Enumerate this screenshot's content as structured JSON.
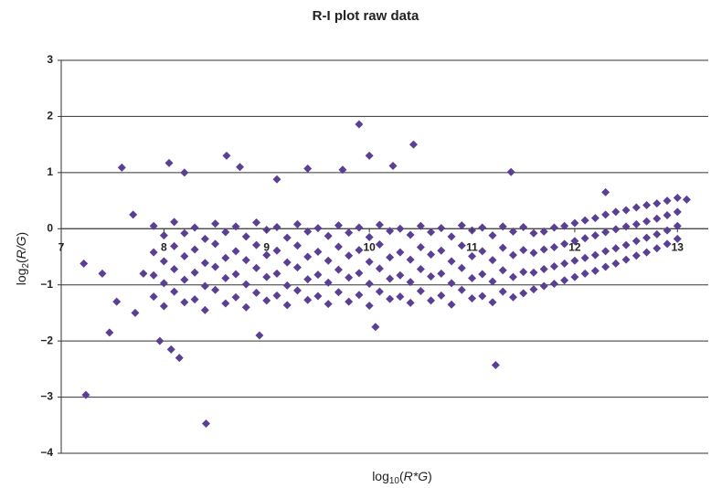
{
  "chart_data": {
    "type": "scatter",
    "title": "R-I plot raw data",
    "xlabel_parts": [
      "log",
      "10",
      "(",
      "R*G",
      ")"
    ],
    "ylabel_parts": [
      "log",
      "2",
      "(",
      "R/G",
      ")"
    ],
    "color": "#5b3f94",
    "grid": true,
    "xlim": [
      7,
      13.3
    ],
    "ylim": [
      -4,
      3
    ],
    "xticks": [
      7,
      8,
      9,
      10,
      11,
      12,
      13
    ],
    "yticks": [
      {
        "value": -4,
        "label": "−4"
      },
      {
        "value": -3,
        "label": "−3"
      },
      {
        "value": -2,
        "label": "−2"
      },
      {
        "value": -1,
        "label": "−1"
      },
      0,
      1,
      2,
      3
    ],
    "x": [
      7.9,
      7.9,
      7.9,
      7.9,
      8.0,
      8.0,
      8.0,
      8.0,
      8.1,
      8.1,
      8.1,
      8.1,
      8.2,
      8.2,
      8.2,
      8.2,
      8.3,
      8.3,
      8.3,
      8.3,
      8.4,
      8.4,
      8.4,
      8.4,
      8.5,
      8.5,
      8.5,
      8.5,
      8.6,
      8.6,
      8.6,
      8.6,
      8.7,
      8.7,
      8.7,
      8.7,
      8.8,
      8.8,
      8.8,
      8.8,
      8.9,
      8.9,
      8.9,
      8.9,
      9.0,
      9.0,
      9.0,
      9.0,
      9.1,
      9.1,
      9.1,
      9.1,
      9.2,
      9.2,
      9.2,
      9.2,
      9.3,
      9.3,
      9.3,
      9.3,
      9.4,
      9.4,
      9.4,
      9.4,
      9.5,
      9.5,
      9.5,
      9.5,
      9.6,
      9.6,
      9.6,
      9.6,
      9.7,
      9.7,
      9.7,
      9.7,
      9.8,
      9.8,
      9.8,
      9.8,
      9.9,
      9.9,
      9.9,
      9.9,
      10.0,
      10.0,
      10.0,
      10.0,
      10.1,
      10.1,
      10.1,
      10.1,
      10.2,
      10.2,
      10.2,
      10.2,
      10.3,
      10.3,
      10.3,
      10.3,
      10.4,
      10.4,
      10.4,
      10.4,
      10.5,
      10.5,
      10.5,
      10.5,
      10.6,
      10.6,
      10.6,
      10.6,
      10.7,
      10.7,
      10.7,
      10.7,
      10.8,
      10.8,
      10.8,
      10.8,
      10.9,
      10.9,
      10.9,
      10.9,
      11.0,
      11.0,
      11.0,
      11.0,
      11.1,
      11.1,
      11.1,
      11.1,
      11.2,
      11.2,
      11.2,
      11.2,
      11.3,
      11.3,
      11.3,
      11.3,
      11.4,
      11.4,
      11.4,
      11.4,
      11.5,
      11.5,
      11.5,
      11.5,
      11.6,
      11.6,
      11.6,
      11.6,
      11.7,
      11.7,
      11.7,
      11.7,
      11.8,
      11.8,
      11.8,
      11.8,
      11.9,
      11.9,
      11.9,
      11.9,
      12.0,
      12.0,
      12.0,
      12.0,
      12.1,
      12.1,
      12.1,
      12.1,
      12.2,
      12.2,
      12.2,
      12.2,
      12.3,
      12.3,
      12.3,
      12.3,
      12.4,
      12.4,
      12.4,
      12.4,
      12.5,
      12.5,
      12.5,
      12.5,
      12.6,
      12.6,
      12.6,
      12.6,
      12.7,
      12.7,
      12.7,
      12.7,
      12.8,
      12.8,
      12.8,
      12.8,
      12.9,
      12.9,
      12.9,
      12.9,
      13.0,
      13.0,
      13.0,
      13.0,
      7.22,
      7.24,
      7.59,
      8.05,
      8.61,
      8.41,
      9.9,
      10.0,
      10.43,
      11.38,
      11.23,
      8.15,
      7.96,
      7.47,
      8.07,
      8.2,
      8.74,
      9.4,
      9.74,
      10.23,
      9.1,
      12.3,
      13.09,
      8.93,
      10.06,
      7.4,
      7.54,
      7.72,
      7.8,
      7.7
    ],
    "y": [
      0.05,
      -0.42,
      -0.83,
      -1.21,
      -0.12,
      -0.58,
      -0.97,
      -1.38,
      0.12,
      -0.31,
      -0.72,
      -1.12,
      -0.08,
      -0.49,
      -0.91,
      -1.31,
      0.02,
      -0.37,
      -0.78,
      -1.26,
      -0.18,
      -0.61,
      -1.02,
      -1.45,
      0.09,
      -0.27,
      -0.68,
      -1.09,
      -0.06,
      -0.52,
      -0.88,
      -1.33,
      0.04,
      -0.4,
      -0.81,
      -1.22,
      -0.14,
      -0.56,
      -0.99,
      -1.4,
      0.11,
      -0.29,
      -0.7,
      -1.14,
      -0.02,
      -0.47,
      -0.86,
      -1.28,
      0.03,
      -0.39,
      -0.8,
      -1.19,
      -0.16,
      -0.6,
      -1.01,
      -1.36,
      0.08,
      -0.3,
      -0.69,
      -1.1,
      -0.05,
      -0.5,
      -0.9,
      -1.27,
      0.01,
      -0.41,
      -0.82,
      -1.2,
      -0.13,
      -0.57,
      -0.96,
      -1.34,
      0.06,
      -0.32,
      -0.73,
      -1.13,
      -0.07,
      -0.48,
      -0.87,
      -1.3,
      0.02,
      -0.38,
      -0.79,
      -1.18,
      -0.15,
      -0.59,
      -0.98,
      -1.37,
      0.07,
      -0.28,
      -0.71,
      -1.12,
      -0.04,
      -0.51,
      -0.89,
      -1.25,
      0.0,
      -0.42,
      -0.83,
      -1.21,
      -0.11,
      -0.55,
      -0.95,
      -1.32,
      0.05,
      -0.33,
      -0.72,
      -1.11,
      -0.06,
      -0.46,
      -0.85,
      -1.28,
      0.01,
      -0.39,
      -0.8,
      -1.19,
      -0.14,
      -0.58,
      -0.97,
      -1.35,
      0.06,
      -0.3,
      -0.7,
      -1.09,
      -0.03,
      -0.49,
      -0.88,
      -1.24,
      0.02,
      -0.4,
      -0.81,
      -1.2,
      -0.12,
      -0.56,
      -0.94,
      -1.31,
      0.04,
      -0.34,
      -0.74,
      -1.12,
      -0.05,
      -0.47,
      -0.86,
      -1.22,
      0.03,
      -0.38,
      -0.77,
      -1.15,
      -0.08,
      -0.43,
      -0.78,
      -1.08,
      -0.05,
      -0.37,
      -0.72,
      -1.02,
      0.02,
      -0.33,
      -0.67,
      -0.98,
      0.05,
      -0.27,
      -0.62,
      -0.92,
      0.1,
      -0.22,
      -0.57,
      -0.86,
      0.15,
      -0.17,
      -0.52,
      -0.8,
      0.19,
      -0.12,
      -0.47,
      -0.75,
      0.25,
      -0.06,
      -0.4,
      -0.68,
      0.3,
      -0.01,
      -0.35,
      -0.62,
      0.33,
      0.04,
      -0.29,
      -0.55,
      0.38,
      0.08,
      -0.22,
      -0.48,
      0.42,
      0.13,
      -0.16,
      -0.42,
      0.45,
      0.18,
      -0.1,
      -0.35,
      0.5,
      0.24,
      -0.03,
      -0.27,
      0.55,
      0.3,
      0.05,
      -0.18,
      -0.62,
      -2.96,
      1.09,
      1.17,
      1.3,
      -3.47,
      1.86,
      1.3,
      1.5,
      1.01,
      -2.43,
      -2.3,
      -2.0,
      -1.85,
      -2.15,
      1.0,
      1.1,
      1.07,
      1.05,
      1.12,
      0.88,
      0.65,
      0.52,
      -1.9,
      -1.75,
      -0.8,
      -1.3,
      -1.5,
      -0.8,
      0.25
    ]
  }
}
